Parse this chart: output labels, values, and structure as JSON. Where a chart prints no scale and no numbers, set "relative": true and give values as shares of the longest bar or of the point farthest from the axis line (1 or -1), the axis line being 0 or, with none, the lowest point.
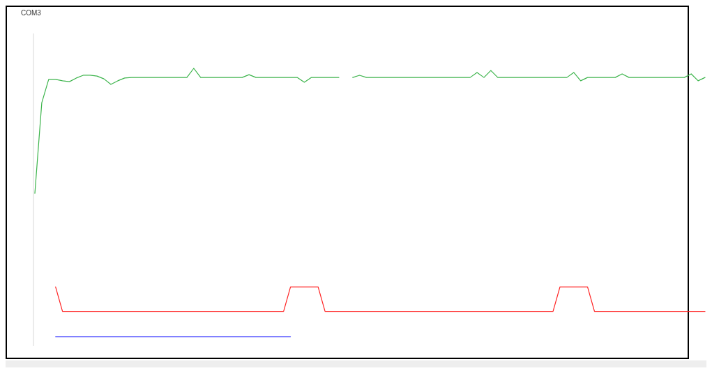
{
  "chart_data": {
    "type": "line",
    "title": "COM3",
    "relative": true,
    "categories": [
      null,
      null,
      null,
      null,
      null,
      null,
      null,
      null,
      null,
      null,
      null,
      null,
      null,
      null,
      null,
      null,
      null,
      null,
      null,
      null,
      null,
      null,
      null,
      null,
      null,
      null,
      null,
      null,
      null,
      null,
      null,
      null,
      null,
      null,
      null,
      null,
      null,
      null,
      null,
      null,
      null,
      null,
      null,
      null,
      null,
      null,
      null,
      null,
      null,
      null,
      null,
      null,
      null,
      null,
      null,
      null,
      null,
      null,
      null,
      null,
      null,
      null,
      null,
      null,
      null,
      null,
      null,
      null,
      null,
      null,
      null,
      null,
      null,
      null,
      null,
      null,
      null,
      null,
      null,
      null,
      null,
      null,
      null,
      null,
      null,
      null,
      null,
      null,
      null,
      null,
      null,
      null,
      null,
      null,
      null,
      null,
      null,
      null
    ],
    "series": [
      {
        "color": "#3cb44b",
        "values": [
          0.55,
          0.876,
          0.96,
          0.96,
          0.955,
          0.952,
          0.965,
          0.975,
          0.975,
          0.972,
          0.962,
          0.942,
          0.955,
          0.965,
          0.967,
          0.967,
          0.967,
          0.967,
          0.967,
          0.967,
          0.967,
          0.967,
          0.967,
          1.0,
          0.967,
          0.967,
          0.967,
          0.967,
          0.967,
          0.967,
          0.967,
          0.977,
          0.967,
          0.967,
          0.967,
          0.967,
          0.967,
          0.967,
          0.967,
          0.95,
          0.967,
          0.967,
          0.967,
          0.967,
          0.967,
          null,
          0.967,
          0.975,
          0.967,
          0.967,
          0.967,
          0.967,
          0.967,
          0.967,
          0.967,
          0.967,
          0.967,
          0.967,
          0.967,
          0.967,
          0.967,
          0.967,
          0.967,
          0.967,
          0.985,
          0.967,
          0.992,
          0.967,
          0.967,
          0.967,
          0.967,
          0.967,
          0.967,
          0.967,
          0.967,
          0.967,
          0.967,
          0.967,
          0.985,
          0.955,
          0.967,
          0.967,
          0.967,
          0.967,
          0.967,
          0.98,
          0.967,
          0.967,
          0.967,
          0.967,
          0.967,
          0.967,
          0.967,
          0.967,
          0.967,
          0.98,
          0.955,
          0.967
        ]
      },
      {
        "color": "#ff2020",
        "values": [
          null,
          null,
          null,
          0.212,
          0.124,
          0.124,
          0.124,
          0.124,
          0.124,
          0.124,
          0.124,
          0.124,
          0.124,
          0.124,
          0.124,
          0.124,
          0.124,
          0.124,
          0.124,
          0.124,
          0.124,
          0.124,
          0.124,
          0.124,
          0.124,
          0.124,
          0.124,
          0.124,
          0.124,
          0.124,
          0.124,
          0.124,
          0.124,
          0.124,
          0.124,
          0.124,
          0.124,
          0.212,
          0.212,
          0.212,
          0.212,
          0.212,
          0.124,
          0.124,
          0.124,
          0.124,
          0.124,
          0.124,
          0.124,
          0.124,
          0.124,
          0.124,
          0.124,
          0.124,
          0.124,
          0.124,
          0.124,
          0.124,
          0.124,
          0.124,
          0.124,
          0.124,
          0.124,
          0.124,
          0.124,
          0.124,
          0.124,
          0.124,
          0.124,
          0.124,
          0.124,
          0.124,
          0.124,
          0.124,
          0.124,
          0.124,
          0.212,
          0.212,
          0.212,
          0.212,
          0.212,
          0.124,
          0.124,
          0.124,
          0.124,
          0.124,
          0.124,
          0.124,
          0.124,
          0.124,
          0.124,
          0.124,
          0.124,
          0.124,
          0.124,
          0.124,
          0.124,
          0.124
        ]
      },
      {
        "color": "#5050ff",
        "values": [
          null,
          null,
          null,
          0.033,
          0.033,
          0.033,
          0.033,
          0.033,
          0.033,
          0.033,
          0.033,
          0.033,
          0.033,
          0.033,
          0.033,
          0.033,
          0.033,
          0.033,
          0.033,
          0.033,
          0.033,
          0.033,
          0.033,
          0.033,
          0.033,
          0.033,
          0.033,
          0.033,
          0.033,
          0.033,
          0.033,
          0.033,
          0.033,
          0.033,
          0.033,
          0.033,
          0.033,
          0.033,
          null,
          null,
          null,
          null,
          null,
          null,
          null,
          null,
          null,
          null,
          null,
          null,
          null,
          null,
          null,
          null,
          null,
          null,
          null,
          null,
          null,
          null,
          null,
          null,
          null,
          null,
          null,
          null,
          null,
          null,
          null,
          null,
          null,
          null,
          null,
          null,
          null,
          null,
          null,
          null,
          null,
          null,
          null,
          null,
          null,
          null,
          null,
          null,
          null,
          null,
          null,
          null,
          null,
          null,
          null,
          null,
          null,
          null,
          null,
          null
        ]
      }
    ]
  }
}
